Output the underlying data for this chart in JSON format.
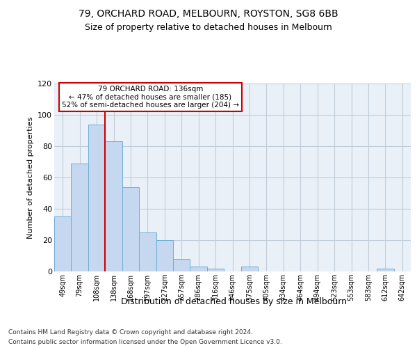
{
  "title1": "79, ORCHARD ROAD, MELBOURN, ROYSTON, SG8 6BB",
  "title2": "Size of property relative to detached houses in Melbourn",
  "xlabel": "Distribution of detached houses by size in Melbourn",
  "ylabel": "Number of detached properties",
  "bin_labels": [
    "49sqm",
    "79sqm",
    "108sqm",
    "138sqm",
    "168sqm",
    "197sqm",
    "227sqm",
    "257sqm",
    "286sqm",
    "316sqm",
    "346sqm",
    "375sqm",
    "405sqm",
    "434sqm",
    "464sqm",
    "494sqm",
    "523sqm",
    "553sqm",
    "583sqm",
    "612sqm",
    "642sqm"
  ],
  "bar_heights": [
    35,
    69,
    94,
    83,
    54,
    25,
    20,
    8,
    3,
    2,
    0,
    3,
    0,
    0,
    0,
    0,
    0,
    0,
    0,
    2,
    0
  ],
  "bar_color": "#c5d8ef",
  "bar_edge_color": "#6baed6",
  "grid_color": "#c0ccd8",
  "background_color": "#eaf0f8",
  "vline_color": "#cc0000",
  "vline_x_idx": 3,
  "annotation_text": "79 ORCHARD ROAD: 136sqm\n← 47% of detached houses are smaller (185)\n52% of semi-detached houses are larger (204) →",
  "annotation_box_color": "#ffffff",
  "annotation_box_edge": "#cc0000",
  "ylim_max": 120,
  "yticks": [
    0,
    20,
    40,
    60,
    80,
    100,
    120
  ],
  "title1_fontsize": 10,
  "title2_fontsize": 9,
  "ylabel_fontsize": 8,
  "xlabel_fontsize": 9,
  "tick_fontsize": 7,
  "footer1": "Contains HM Land Registry data © Crown copyright and database right 2024.",
  "footer2": "Contains public sector information licensed under the Open Government Licence v3.0.",
  "footer_fontsize": 6.5
}
